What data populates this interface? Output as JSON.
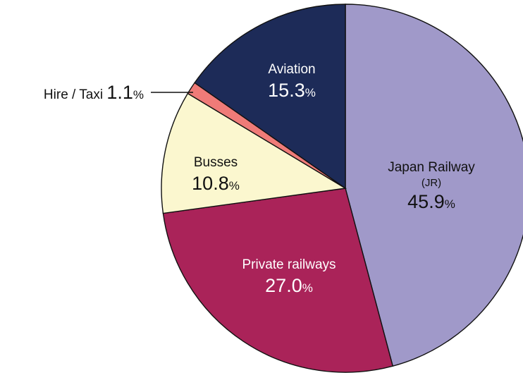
{
  "chart_data": {
    "type": "pie",
    "unit": "%",
    "slices": [
      {
        "name": "Japan Railway",
        "sub": "(JR)",
        "value": 45.9,
        "value_text": "45.9",
        "color": "#a099c9",
        "text_color": "#111111"
      },
      {
        "name": "Private railways",
        "value": 27.0,
        "value_text": "27.0",
        "color": "#aa2359",
        "text_color": "#ffffff"
      },
      {
        "name": "Busses",
        "value": 10.8,
        "value_text": "10.8",
        "color": "#fbf7cf",
        "text_color": "#111111"
      },
      {
        "name": "Hire / Taxi",
        "value": 1.1,
        "value_text": "1.1",
        "color": "#ef7b78",
        "text_color": "#111111"
      },
      {
        "name": "Aviation",
        "value": 15.3,
        "value_text": "15.3",
        "color": "#1d2b58",
        "text_color": "#ffffff"
      }
    ],
    "start": "12 o'clock",
    "direction": "clockwise",
    "legend": "none"
  }
}
